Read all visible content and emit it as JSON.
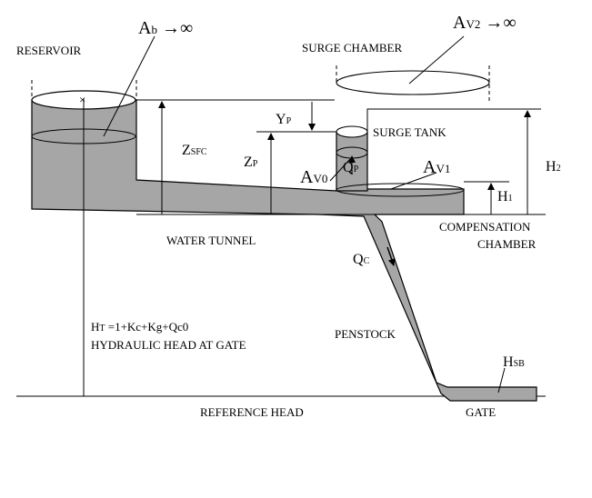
{
  "labels": {
    "reservoir": "RESERVOIR",
    "surge_chamber": "SURGE CHAMBER",
    "surge_tank": "SURGE TANK",
    "compensation_chamber_1": "COMPENSATION",
    "compensation_chamber_2": "CHAMBER",
    "water_tunnel": "WATER TUNNEL",
    "penstock": "PENSTOCK",
    "reference_head": "REFERENCE HEAD",
    "gate": "GATE",
    "hydraulic_head_at_gate": "HYDRAULIC HEAD AT GATE"
  },
  "symbols": {
    "ab_main": "A",
    "ab_sub": "b",
    "ab_tail": " →∞",
    "av2_main": "A",
    "av2_sub": "V2",
    "av2_tail": " →∞",
    "av0_main": "A",
    "av0_sub": "V0",
    "av1_main": "A",
    "av1_sub": "V1",
    "yp_main": "Y",
    "yp_sub": "P",
    "zp_main": "Z",
    "zp_sub": "P",
    "zsfc_main": "Z",
    "zsfc_sub": "SFC",
    "qp_main": "Q",
    "qp_sub": "P",
    "qc_main": "Q",
    "qc_sub": "C",
    "h1_main": "H",
    "h1_sub": "1",
    "h2_main": "H",
    "h2_sub": "2",
    "hsb_main": "H",
    "hsb_sub": "SB",
    "ht_main": "H",
    "ht_sub": "T",
    "ht_eq": " =1+Kc+Kg+Qc0"
  }
}
